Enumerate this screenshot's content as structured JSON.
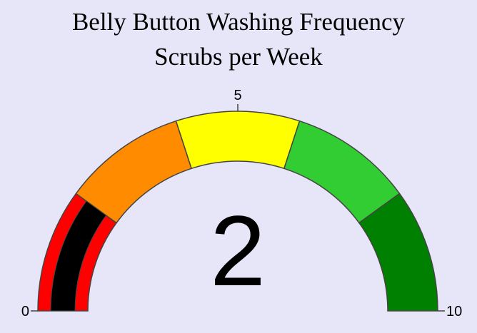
{
  "chart_data": {
    "type": "gauge",
    "title": "Belly Button Washing Frequency",
    "subtitle": "Scrubs per Week",
    "value": 2,
    "range": [
      0,
      10
    ],
    "tick_labels": [
      "0",
      "5",
      "10"
    ],
    "bands": [
      {
        "from": 0,
        "to": 2,
        "color": "#ff0000"
      },
      {
        "from": 2,
        "to": 4,
        "color": "#ff8c00"
      },
      {
        "from": 4,
        "to": 6,
        "color": "#ffff00"
      },
      {
        "from": 6,
        "to": 8,
        "color": "#32cd32"
      },
      {
        "from": 8,
        "to": 10,
        "color": "#008000"
      }
    ],
    "bar_color": "#000000",
    "background": "#e6e6f8"
  }
}
